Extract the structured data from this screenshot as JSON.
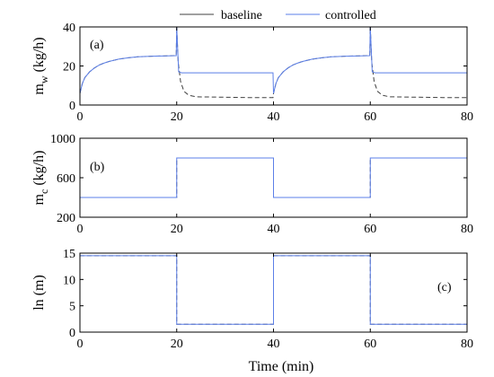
{
  "legend": {
    "entries": [
      {
        "label": "baseline",
        "color": "#404040"
      },
      {
        "label": "controlled",
        "color": "#5b7fe8"
      }
    ]
  },
  "xlabel": "Time (min)",
  "chart_data": [
    {
      "type": "line",
      "tag": "(a)",
      "ylabel_main": "m",
      "ylabel_sub": "w",
      "ylabel_rest": " (kg/h)",
      "xlim": [
        0,
        80
      ],
      "ylim": [
        0,
        40
      ],
      "xticks": [
        0,
        20,
        40,
        60,
        80
      ],
      "yticks": [
        0,
        20,
        40
      ],
      "series": [
        {
          "name": "baseline",
          "color": "#404040",
          "dashed": true,
          "x": [
            0,
            0.5,
            1,
            2,
            3,
            4,
            5,
            6,
            8,
            10,
            12,
            15,
            18,
            19.9,
            20,
            20.3,
            20.8,
            21.5,
            22.5,
            24,
            30,
            35,
            39.9,
            40,
            40.5,
            41,
            42,
            43,
            44,
            45,
            46,
            48,
            50,
            52,
            55,
            58,
            59.9,
            60,
            60.3,
            60.8,
            61.5,
            62.5,
            64,
            70,
            75,
            80
          ],
          "y": [
            6,
            11,
            14,
            17,
            19,
            20.5,
            21.5,
            22.3,
            23.5,
            24.2,
            24.7,
            25,
            25.2,
            25.3,
            40,
            22,
            12,
            7,
            5,
            4.2,
            4,
            3.8,
            3.8,
            6,
            11,
            14,
            17,
            19,
            20.5,
            21.5,
            22.3,
            23.5,
            24.2,
            24.7,
            25,
            25.2,
            25.3,
            40,
            22,
            12,
            7,
            5,
            4.2,
            4,
            3.8,
            3.8
          ]
        },
        {
          "name": "controlled",
          "color": "#5b7fe8",
          "dashed": false,
          "x": [
            0,
            0.5,
            1,
            2,
            3,
            4,
            5,
            6,
            8,
            10,
            12,
            15,
            18,
            19.9,
            20,
            20.4,
            21,
            30,
            39.9,
            40,
            40.5,
            41,
            42,
            43,
            44,
            45,
            46,
            48,
            50,
            52,
            55,
            58,
            59.9,
            60,
            60.4,
            61,
            70,
            80
          ],
          "y": [
            6,
            11,
            14,
            17,
            19,
            20.5,
            21.5,
            22.3,
            23.5,
            24.2,
            24.7,
            25,
            25.2,
            25.3,
            40,
            17,
            16.5,
            16.5,
            16.5,
            6,
            11,
            14,
            17,
            19,
            20.5,
            21.5,
            22.3,
            23.5,
            24.2,
            24.7,
            25,
            25.2,
            25.3,
            40,
            17,
            16.5,
            16.5,
            16.5
          ]
        }
      ]
    },
    {
      "type": "line",
      "tag": "(b)",
      "ylabel_main": "m",
      "ylabel_sub": "c",
      "ylabel_rest": " (kg/h)",
      "xlim": [
        0,
        80
      ],
      "ylim": [
        200,
        1000
      ],
      "xticks": [
        0,
        20,
        40,
        60,
        80
      ],
      "yticks": [
        200,
        600,
        1000
      ],
      "series": [
        {
          "name": "baseline",
          "color": "#404040",
          "dashed": true,
          "x": [
            0,
            20,
            20,
            40,
            40,
            60,
            60,
            80
          ],
          "y": [
            400,
            400,
            800,
            800,
            400,
            400,
            800,
            800
          ]
        },
        {
          "name": "controlled",
          "color": "#5b7fe8",
          "dashed": false,
          "x": [
            0,
            20,
            20,
            40,
            40,
            60,
            60,
            80
          ],
          "y": [
            400,
            400,
            800,
            800,
            400,
            400,
            800,
            800
          ]
        }
      ]
    },
    {
      "type": "line",
      "tag": "(c)",
      "ylabel_main": "ln (m)",
      "ylabel_sub": "",
      "ylabel_rest": "",
      "xlim": [
        0,
        80
      ],
      "ylim": [
        0,
        15
      ],
      "xticks": [
        0,
        20,
        40,
        60,
        80
      ],
      "yticks": [
        0,
        5,
        10,
        15
      ],
      "series": [
        {
          "name": "baseline",
          "color": "#404040",
          "dashed": true,
          "x": [
            0,
            20,
            20,
            40,
            40,
            60,
            60,
            80
          ],
          "y": [
            14.5,
            14.5,
            1.5,
            1.5,
            14.5,
            14.5,
            1.5,
            1.5
          ]
        },
        {
          "name": "controlled",
          "color": "#5b7fe8",
          "dashed": false,
          "x": [
            0,
            20,
            20,
            40,
            40,
            60,
            60,
            80
          ],
          "y": [
            14.5,
            14.5,
            1.5,
            1.5,
            14.5,
            14.5,
            1.5,
            1.5
          ]
        }
      ]
    }
  ]
}
